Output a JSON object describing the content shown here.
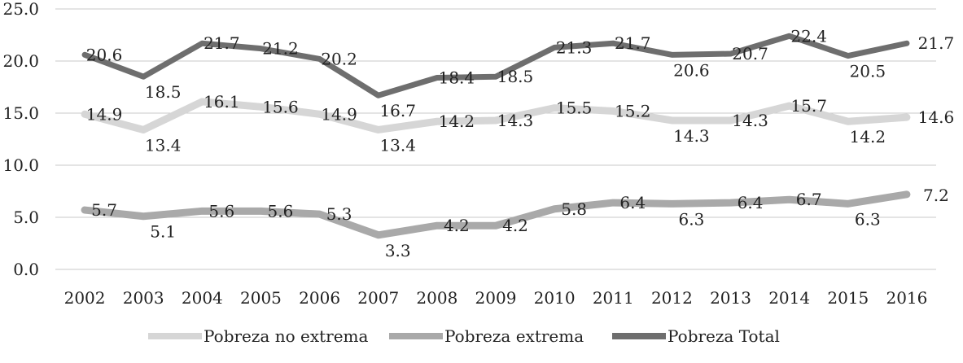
{
  "chart_data": {
    "type": "line",
    "categories": [
      "2002",
      "2003",
      "2004",
      "2005",
      "2006",
      "2007",
      "2008",
      "2009",
      "2010",
      "2011",
      "2012",
      "2013",
      "2014",
      "2015",
      "2016"
    ],
    "ylim": [
      0,
      25
    ],
    "yticks": [
      "0.0",
      "5.0",
      "10.0",
      "15.0",
      "20.0",
      "25.0"
    ],
    "grid": true,
    "legend_position": "bottom",
    "series": [
      {
        "name": "Pobreza no extrema",
        "color": "#d6d6d6",
        "values": [
          14.9,
          13.4,
          16.1,
          15.6,
          14.9,
          13.4,
          14.2,
          14.3,
          15.5,
          15.2,
          14.3,
          14.3,
          15.7,
          14.2,
          14.6
        ],
        "labels": [
          "14.9",
          "13.4",
          "16.1",
          "15.6",
          "14.9",
          "13.4",
          "14.2",
          "14.3",
          "15.5",
          "15.2",
          "14.3",
          "14.3",
          "15.7",
          "14.2",
          "14.6"
        ]
      },
      {
        "name": "Pobreza extrema",
        "color": "#a9a9a9",
        "values": [
          5.7,
          5.1,
          5.6,
          5.6,
          5.3,
          3.3,
          4.2,
          4.2,
          5.8,
          6.4,
          6.3,
          6.4,
          6.7,
          6.3,
          7.2
        ],
        "labels": [
          "5.7",
          "5.1",
          "5.6",
          "5.6",
          "5.3",
          "3.3",
          "4.2",
          "4.2",
          "5.8",
          "6.4",
          "6.3",
          "6.4",
          "6.7",
          "6.3",
          "7.2"
        ]
      },
      {
        "name": "Pobreza Total",
        "color": "#6e6e6e",
        "values": [
          20.6,
          18.5,
          21.7,
          21.2,
          20.2,
          16.7,
          18.4,
          18.5,
          21.3,
          21.7,
          20.6,
          20.7,
          22.4,
          20.5,
          21.7
        ],
        "labels": [
          "20.6",
          "18.5",
          "21.7",
          "21.2",
          "20.2",
          "16.7",
          "18.4",
          "18.5",
          "21.3",
          "21.7",
          "20.6",
          "20.7",
          "22.4",
          "20.5",
          "21.7"
        ]
      }
    ]
  }
}
